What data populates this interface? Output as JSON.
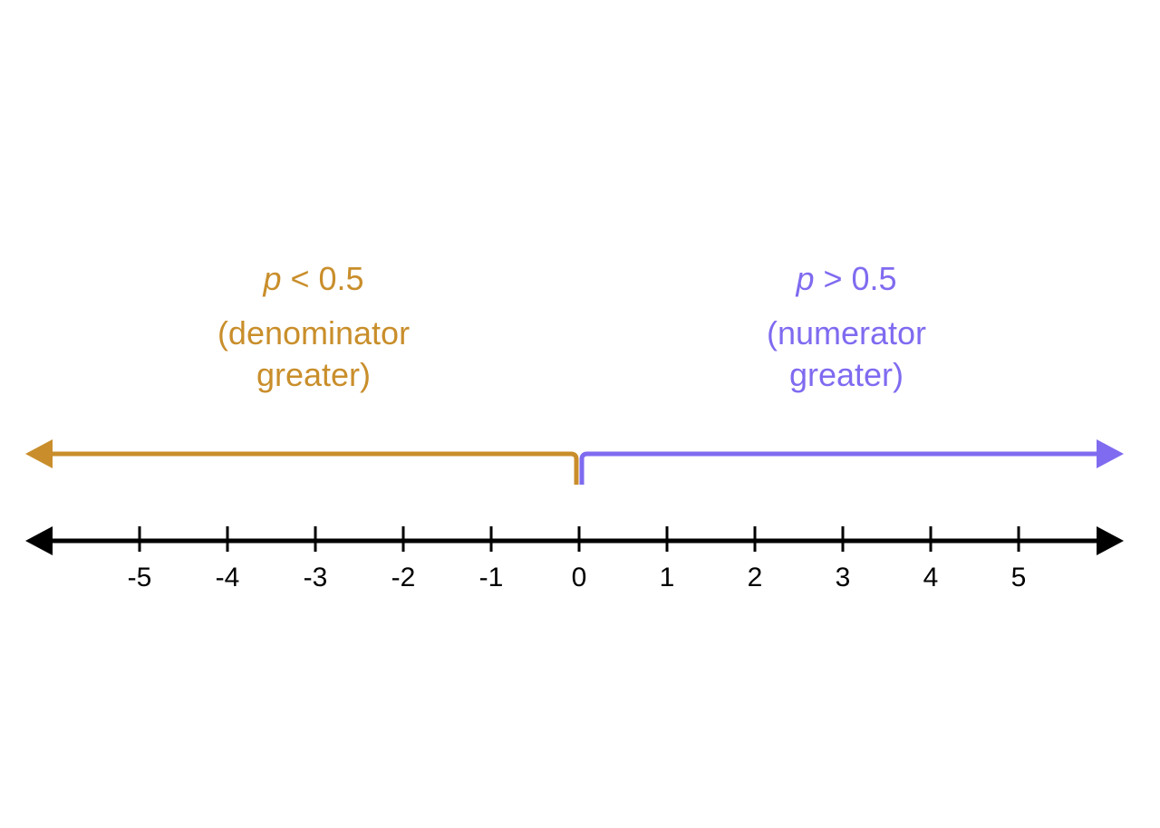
{
  "regions": {
    "left": {
      "variable": "p",
      "condition": " < 0.5",
      "description_line1": "(denominator",
      "description_line2": "greater)",
      "color": "#C98E2B"
    },
    "right": {
      "variable": "p",
      "condition": " > 0.5",
      "description_line1": "(numerator",
      "description_line2": "greater)",
      "color": "#7F6BF0"
    }
  },
  "number_line": {
    "ticks": [
      -5,
      -4,
      -3,
      -2,
      -1,
      0,
      1,
      2,
      3,
      4,
      5
    ],
    "split_value": 0,
    "axis_color": "#000000"
  }
}
